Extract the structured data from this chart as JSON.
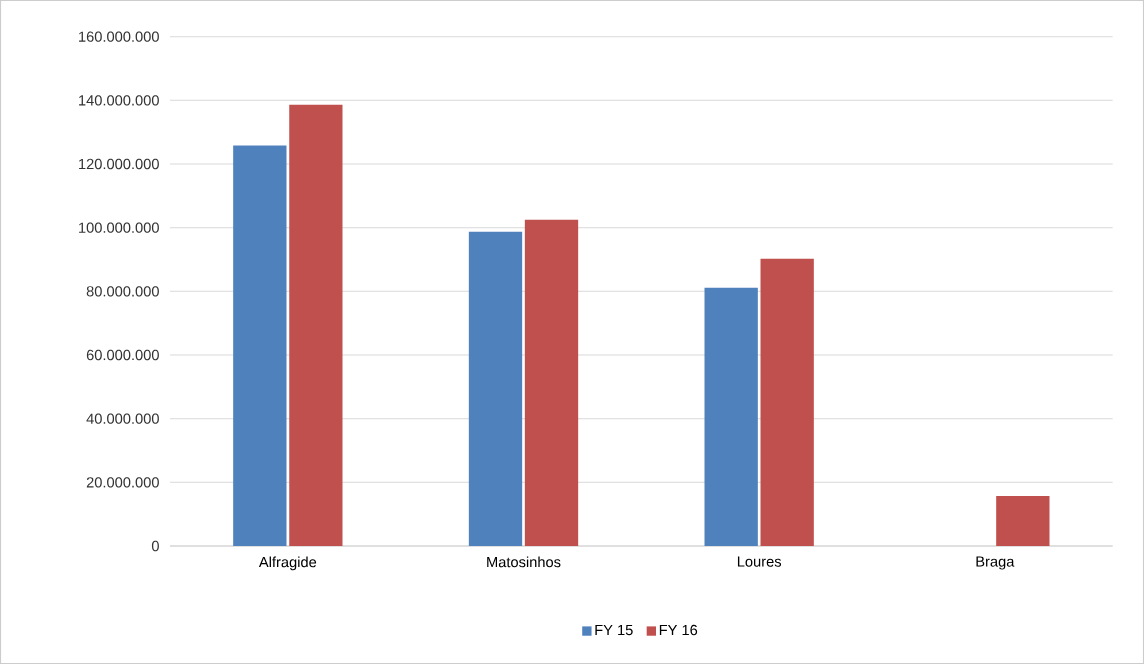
{
  "chart_data": {
    "type": "bar",
    "categories": [
      "Alfragide",
      "Matosinhos",
      "Loures",
      "Braga"
    ],
    "series": [
      {
        "name": "FY 15",
        "color": "#4f81bd",
        "values": [
          125800000,
          98700000,
          81100000,
          null
        ]
      },
      {
        "name": "FY 16",
        "color": "#c0504d",
        "values": [
          138700000,
          102500000,
          90200000,
          15700000
        ]
      }
    ],
    "ylim": [
      0,
      160000000
    ],
    "yticks": [
      {
        "value": 0,
        "label": "0"
      },
      {
        "value": 20000000,
        "label": "20.000.000"
      },
      {
        "value": 40000000,
        "label": "40.000.000"
      },
      {
        "value": 60000000,
        "label": "60.000.000"
      },
      {
        "value": 80000000,
        "label": "80.000.000"
      },
      {
        "value": 100000000,
        "label": "100.000.000"
      },
      {
        "value": 120000000,
        "label": "120.000.000"
      },
      {
        "value": 140000000,
        "label": "140.000.000"
      },
      {
        "value": 160000000,
        "label": "160.000.000"
      }
    ],
    "grid": "y",
    "legend": "bottom"
  }
}
